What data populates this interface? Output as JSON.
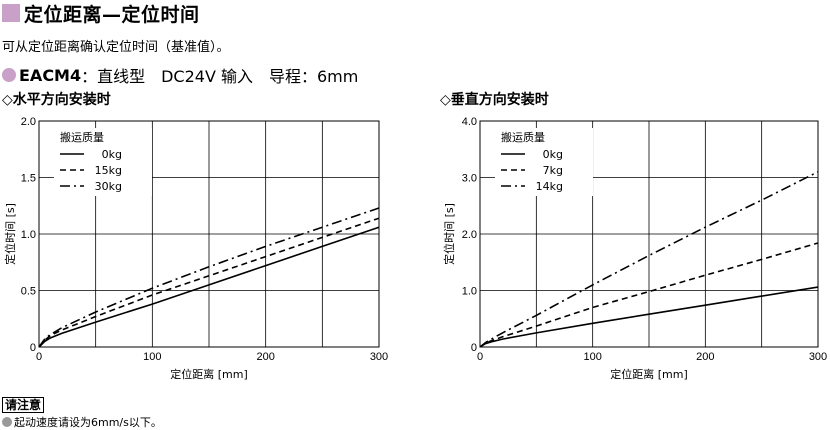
{
  "header": {
    "title": "定位距离—定位时间",
    "subtitle": "可从定位距离确认定位时间（基准值）。",
    "model_name": "EACM4",
    "model_spec": "：直线型　DC24V 输入　导程：6mm"
  },
  "note": {
    "box_label": "请注意",
    "text": "起动速度请设为6mm/s以下。"
  },
  "chart_data": [
    {
      "type": "line",
      "title": "◇水平方向安装时",
      "xlabel": "定位距离 [mm]",
      "ylabel": "定位时间 [s]",
      "xlim": [
        0,
        300
      ],
      "ylim": [
        0,
        2.0
      ],
      "xticks": [
        0,
        100,
        200,
        300
      ],
      "xgrid": [
        0,
        50,
        100,
        150,
        200,
        250,
        300
      ],
      "yticks": [
        0,
        0.5,
        1.0,
        1.5,
        2.0
      ],
      "ytick_labels": [
        "0",
        "0.5",
        "1.0",
        "1.5",
        "2.0"
      ],
      "grid": true,
      "legend_title": "搬运质量",
      "legend_position": "top-left",
      "series": [
        {
          "name": "0kg",
          "style": "solid",
          "x": [
            0,
            5,
            10,
            20,
            50,
            100,
            150,
            200,
            250,
            300
          ],
          "y": [
            0,
            0.05,
            0.08,
            0.12,
            0.22,
            0.38,
            0.55,
            0.72,
            0.89,
            1.06
          ]
        },
        {
          "name": "15kg",
          "style": "dashed",
          "x": [
            0,
            5,
            10,
            20,
            50,
            100,
            150,
            200,
            250,
            300
          ],
          "y": [
            0,
            0.06,
            0.1,
            0.15,
            0.27,
            0.46,
            0.63,
            0.8,
            0.97,
            1.14
          ]
        },
        {
          "name": "30kg",
          "style": "dashdot",
          "x": [
            0,
            5,
            10,
            20,
            50,
            100,
            150,
            200,
            250,
            300
          ],
          "y": [
            0,
            0.07,
            0.11,
            0.17,
            0.31,
            0.52,
            0.71,
            0.89,
            1.06,
            1.23
          ]
        }
      ]
    },
    {
      "type": "line",
      "title": "◇垂直方向安装时",
      "xlabel": "定位距离 [mm]",
      "ylabel": "定位时间 [s]",
      "xlim": [
        0,
        300
      ],
      "ylim": [
        0,
        4.0
      ],
      "xticks": [
        0,
        100,
        200,
        300
      ],
      "xgrid": [
        0,
        50,
        100,
        150,
        200,
        250,
        300
      ],
      "yticks": [
        0,
        1.0,
        2.0,
        3.0,
        4.0
      ],
      "ytick_labels": [
        "0",
        "1.0",
        "2.0",
        "3.0",
        "4.0"
      ],
      "grid": true,
      "legend_title": "搬运质量",
      "legend_position": "top-left",
      "series": [
        {
          "name": "0kg",
          "style": "solid",
          "x": [
            0,
            5,
            10,
            20,
            50,
            100,
            150,
            200,
            250,
            300
          ],
          "y": [
            0,
            0.06,
            0.09,
            0.14,
            0.25,
            0.42,
            0.58,
            0.74,
            0.9,
            1.06
          ]
        },
        {
          "name": "7kg",
          "style": "dashed",
          "x": [
            0,
            5,
            10,
            20,
            50,
            100,
            150,
            200,
            250,
            300
          ],
          "y": [
            0,
            0.07,
            0.11,
            0.18,
            0.37,
            0.7,
            0.98,
            1.27,
            1.55,
            1.84
          ]
        },
        {
          "name": "14kg",
          "style": "dashdot",
          "x": [
            0,
            5,
            10,
            20,
            50,
            100,
            150,
            200,
            250,
            300
          ],
          "y": [
            0,
            0.08,
            0.14,
            0.25,
            0.56,
            1.1,
            1.62,
            2.12,
            2.6,
            3.1
          ]
        }
      ]
    }
  ]
}
